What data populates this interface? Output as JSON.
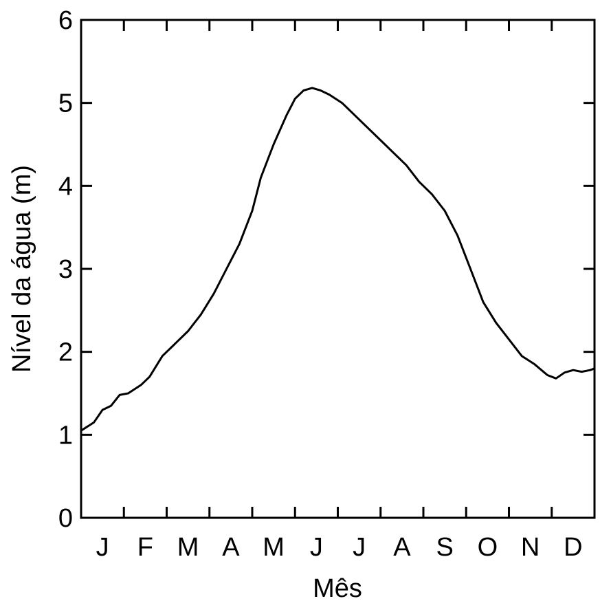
{
  "chart_data": {
    "type": "line",
    "xlabel": "Mês",
    "ylabel": "Nível da água (m)",
    "ylim": [
      0,
      6
    ],
    "xlim": [
      0,
      12
    ],
    "y_ticks": [
      "0",
      "1",
      "2",
      "3",
      "4",
      "5",
      "6"
    ],
    "x_tick_labels": [
      "J",
      "F",
      "M",
      "A",
      "M",
      "J",
      "J",
      "A",
      "S",
      "O",
      "N",
      "D"
    ],
    "grid": false,
    "series": [
      {
        "x": [
          0,
          0.3,
          0.5,
          0.7,
          0.9,
          1.1,
          1.4,
          1.6,
          1.9,
          2.2,
          2.5,
          2.8,
          3.1,
          3.4,
          3.7,
          4.0,
          4.2,
          4.5,
          4.8,
          5.0,
          5.2,
          5.4,
          5.6,
          5.8,
          6.1,
          6.4,
          6.7,
          7.0,
          7.3,
          7.6,
          7.9,
          8.2,
          8.5,
          8.8,
          9.1,
          9.4,
          9.7,
          10.0,
          10.3,
          10.6,
          10.9,
          11.1,
          11.3,
          11.5,
          11.7,
          11.9,
          12.0
        ],
        "y": [
          1.05,
          1.15,
          1.3,
          1.35,
          1.48,
          1.5,
          1.6,
          1.7,
          1.95,
          2.1,
          2.25,
          2.45,
          2.7,
          3.0,
          3.3,
          3.7,
          4.1,
          4.5,
          4.85,
          5.05,
          5.15,
          5.18,
          5.15,
          5.1,
          5.0,
          4.85,
          4.7,
          4.55,
          4.4,
          4.25,
          4.05,
          3.9,
          3.7,
          3.4,
          3.0,
          2.6,
          2.35,
          2.15,
          1.95,
          1.85,
          1.72,
          1.68,
          1.75,
          1.78,
          1.76,
          1.78,
          1.8
        ]
      }
    ]
  }
}
